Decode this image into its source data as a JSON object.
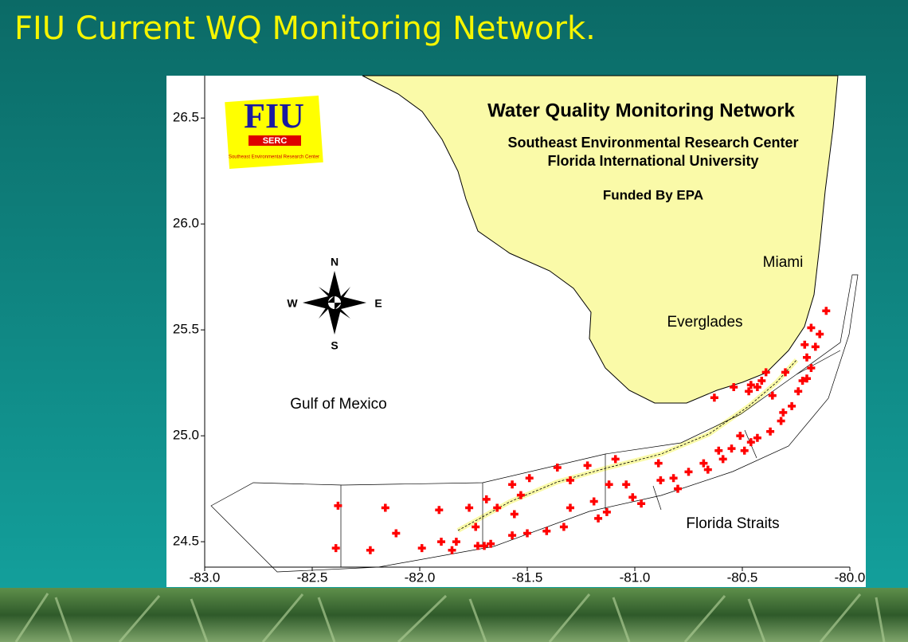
{
  "slide": {
    "title": "FIU Current WQ Monitoring Network."
  },
  "chart_data": {
    "type": "scatter",
    "title": "Water Quality Monitoring Network",
    "subtitle": [
      "Southeast Environmental Research Center",
      "Florida International University"
    ],
    "funding": "Funded By EPA",
    "logo": {
      "name": "FIU",
      "badge": "SERC",
      "caption": "Southeast Environmental Research Center"
    },
    "places": [
      "Miami",
      "Everglades",
      "Gulf of Mexico",
      "Florida Straits"
    ],
    "compass": {
      "north": "N",
      "south": "S",
      "west": "W",
      "east": "E"
    },
    "xlim": [
      -83.0,
      -80.0
    ],
    "ylim": [
      24.38,
      26.7
    ],
    "xticks": [
      {
        "value": -83.0,
        "label": "-83.0"
      },
      -82.5,
      {
        "value": -82.0,
        "label": "-82.0"
      },
      -81.5,
      {
        "value": -81.0,
        "label": "-81.0"
      },
      -80.5,
      {
        "value": -80.0,
        "label": "-80.0"
      }
    ],
    "yticks": [
      24.5,
      {
        "value": 25.0,
        "label": "25.0"
      },
      25.5,
      {
        "value": 26.0,
        "label": "26.0"
      },
      26.5
    ],
    "color": "#ff0000",
    "x": [
      -82.38,
      -82.39,
      -82.16,
      -82.11,
      -82.23,
      -81.91,
      -81.99,
      -81.9,
      -81.85,
      -81.83,
      -81.77,
      -81.74,
      -81.73,
      -81.7,
      -81.67,
      -81.69,
      -81.64,
      -81.57,
      -81.49,
      -81.53,
      -81.56,
      -81.57,
      -81.5,
      -81.41,
      -81.33,
      -81.36,
      -81.3,
      -81.22,
      -81.3,
      -81.19,
      -81.17,
      -81.13,
      -81.09,
      -81.12,
      -81.04,
      -81.01,
      -80.97,
      -80.89,
      -80.88,
      -80.8,
      -80.82,
      -80.75,
      -80.68,
      -80.66,
      -80.61,
      -80.59,
      -80.55,
      -80.49,
      -80.51,
      -80.46,
      -80.43,
      -80.37,
      -80.32,
      -80.31,
      -80.27,
      -80.24,
      -80.22,
      -80.2,
      -80.18,
      -80.2,
      -80.21,
      -80.18,
      -80.14,
      -80.11,
      -80.16,
      -80.46,
      -80.47,
      -80.43,
      -80.41,
      -80.39,
      -80.36,
      -80.3,
      -80.54,
      -80.63
    ],
    "y": [
      24.67,
      24.47,
      24.66,
      24.54,
      24.46,
      24.65,
      24.47,
      24.5,
      24.46,
      24.5,
      24.66,
      24.57,
      24.48,
      24.48,
      24.49,
      24.7,
      24.66,
      24.77,
      24.8,
      24.72,
      24.63,
      24.53,
      24.54,
      24.55,
      24.57,
      24.85,
      24.79,
      24.86,
      24.66,
      24.69,
      24.61,
      24.64,
      24.89,
      24.77,
      24.77,
      24.71,
      24.68,
      24.87,
      24.79,
      24.75,
      24.8,
      24.83,
      24.87,
      24.84,
      24.93,
      24.89,
      24.94,
      24.93,
      25.0,
      24.97,
      24.99,
      25.02,
      25.07,
      25.11,
      25.14,
      25.21,
      25.26,
      25.27,
      25.32,
      25.37,
      25.43,
      25.51,
      25.48,
      25.59,
      25.42,
      25.24,
      25.21,
      25.23,
      25.26,
      25.3,
      25.19,
      25.3,
      25.23,
      25.18
    ]
  }
}
